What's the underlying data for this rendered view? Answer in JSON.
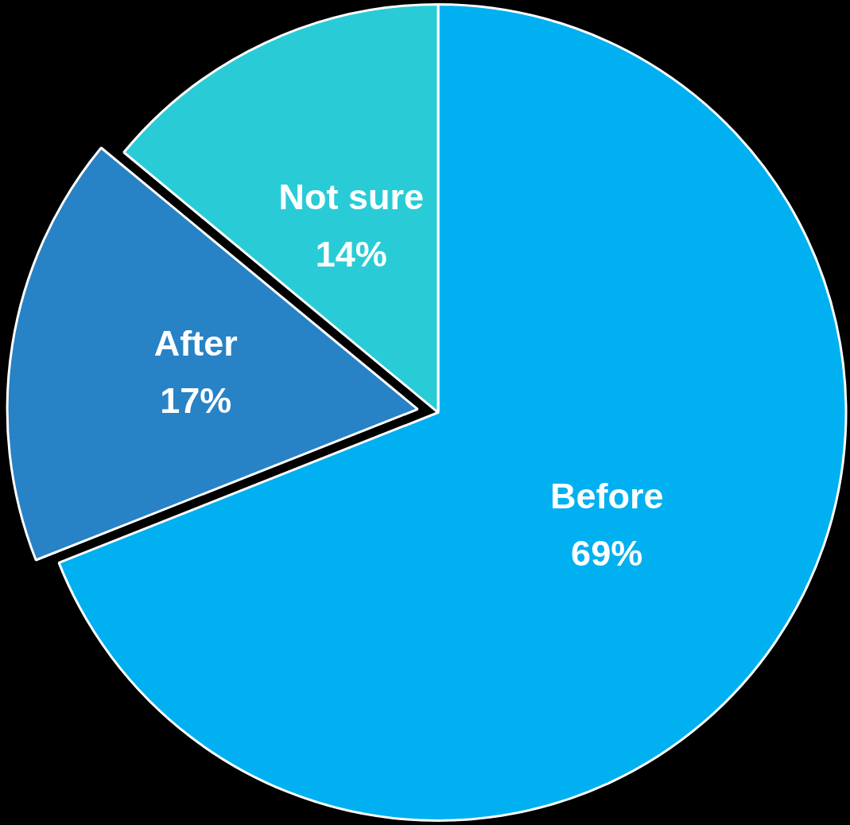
{
  "chart_data": {
    "type": "pie",
    "categories": [
      "Before",
      "After",
      "Not sure"
    ],
    "values": [
      69,
      17,
      14
    ],
    "colors": [
      "#00b0f0",
      "#2882c6",
      "#29ccd6"
    ],
    "value_labels": [
      "69%",
      "17%",
      "14%"
    ],
    "legend": false
  }
}
